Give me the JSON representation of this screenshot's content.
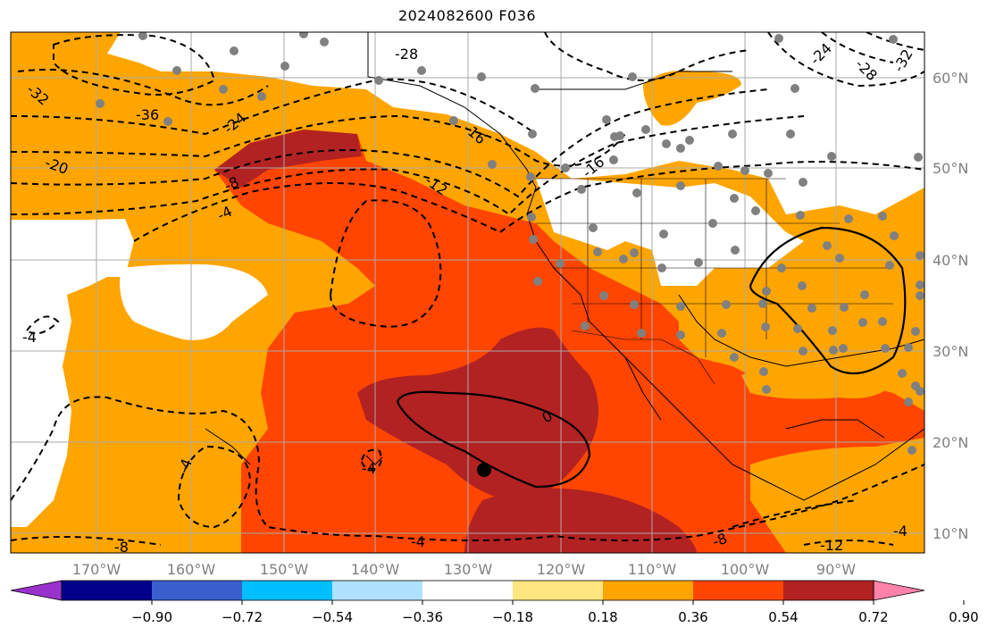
{
  "title": "2024082600 F036",
  "lon_labels": [
    "170°W",
    "160°W",
    "150°W",
    "140°W",
    "130°W",
    "120°W",
    "110°W",
    "100°W",
    "90°W"
  ],
  "lat_labels": [
    "60°N",
    "50°N",
    "40°N",
    "30°N",
    "20°N",
    "10°N"
  ],
  "colorbar": {
    "ticks": [
      "−0.90",
      "−0.72",
      "−0.54",
      "−0.36",
      "−0.18",
      "0.18",
      "0.36",
      "0.54",
      "0.72",
      "0.90"
    ],
    "colors": [
      "#9932cc",
      "#00008b",
      "#3a5fcd",
      "#00bfff",
      "#b0e2ff",
      "#ffffff",
      "#ffe680",
      "#ffa500",
      "#ff4500",
      "#b22222",
      "#ff82ab"
    ]
  },
  "contour_labels": [
    "-28",
    "-32",
    "-36",
    "-24",
    "-20",
    "-16",
    "-12",
    "-8",
    "-4",
    "0",
    "-4",
    "-4",
    "-4",
    "-8",
    "-8",
    "-12",
    "-24",
    "-28",
    "-32",
    "-16",
    "-4",
    "-4"
  ],
  "fill_colors": {
    "ocean_base": "#ffa500",
    "mid": "#ff4500",
    "high": "#b22222",
    "neutral": "#ffffff"
  },
  "station_color": "#808080",
  "center_marker": "black-dot"
}
